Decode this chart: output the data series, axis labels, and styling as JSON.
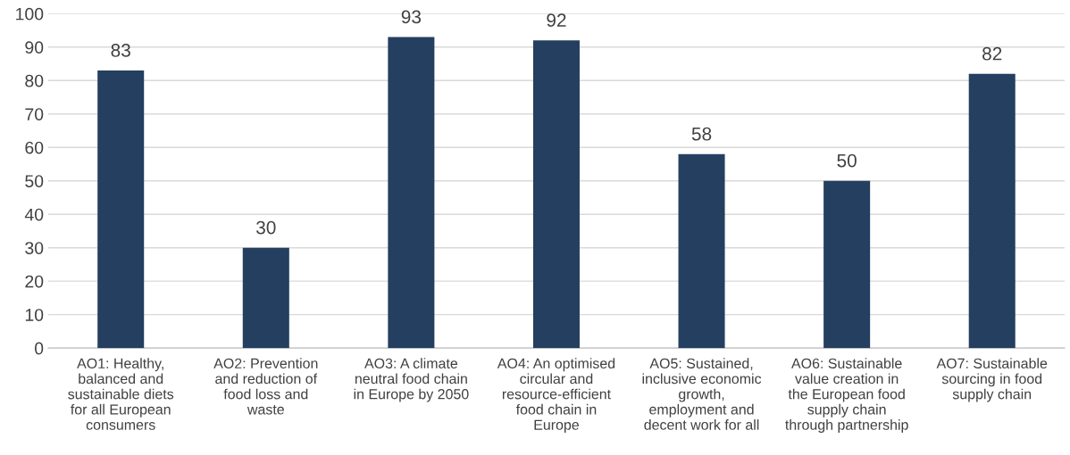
{
  "chart_data": {
    "type": "bar",
    "categories": [
      "AO1: Healthy,\nbalanced and\nsustainable diets\nfor all European\nconsumers",
      "AO2: Prevention\nand reduction of\nfood loss and\nwaste",
      "AO3: A climate\nneutral food chain\nin Europe by 2050",
      "AO4: An optimised\ncircular and\nresource-efficient\nfood chain in\nEurope",
      "AO5: Sustained,\ninclusive economic\ngrowth,\nemployment and\ndecent work for all",
      "AO6: Sustainable\nvalue creation in\nthe European food\nsupply chain\nthrough partnership",
      "AO7: Sustainable\nsourcing in food\nsupply chain"
    ],
    "values": [
      83,
      30,
      93,
      92,
      58,
      50,
      82
    ],
    "color": "#243f60",
    "ylim": [
      0,
      100
    ],
    "yticks": [
      0,
      10,
      20,
      30,
      40,
      50,
      60,
      70,
      80,
      90,
      100
    ],
    "grid": "y",
    "data_labels": true,
    "legend": false
  }
}
